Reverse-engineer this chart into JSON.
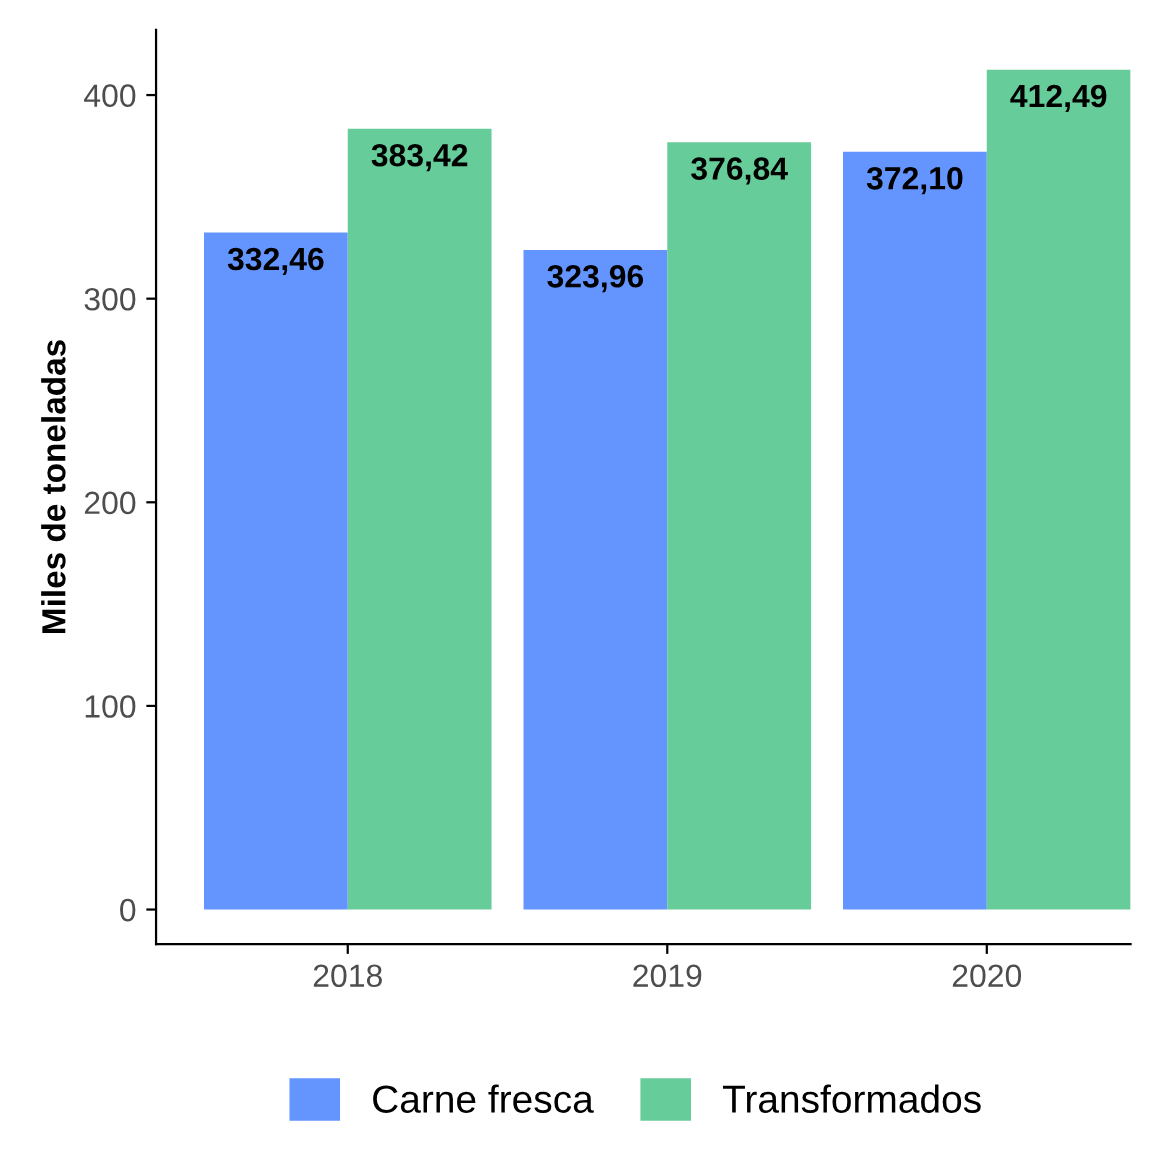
{
  "chart_data": {
    "type": "bar",
    "ylabel": "Miles de toneladas",
    "categories": [
      "2018",
      "2019",
      "2020"
    ],
    "series": [
      {
        "name": "Carne fresca",
        "color": "#6495ff",
        "values": [
          332.46,
          323.96,
          372.1
        ],
        "value_labels": [
          "332,46",
          "323,96",
          "372,10"
        ]
      },
      {
        "name": "Transformados",
        "color": "#66cc99",
        "values": [
          383.42,
          376.84,
          412.49
        ],
        "value_labels": [
          "383,42",
          "376,84",
          "412,49"
        ]
      }
    ],
    "ylim": [
      -17,
      432
    ],
    "yticks": [
      0,
      100,
      200,
      300,
      400
    ],
    "grid": false,
    "legend": "bottom"
  }
}
